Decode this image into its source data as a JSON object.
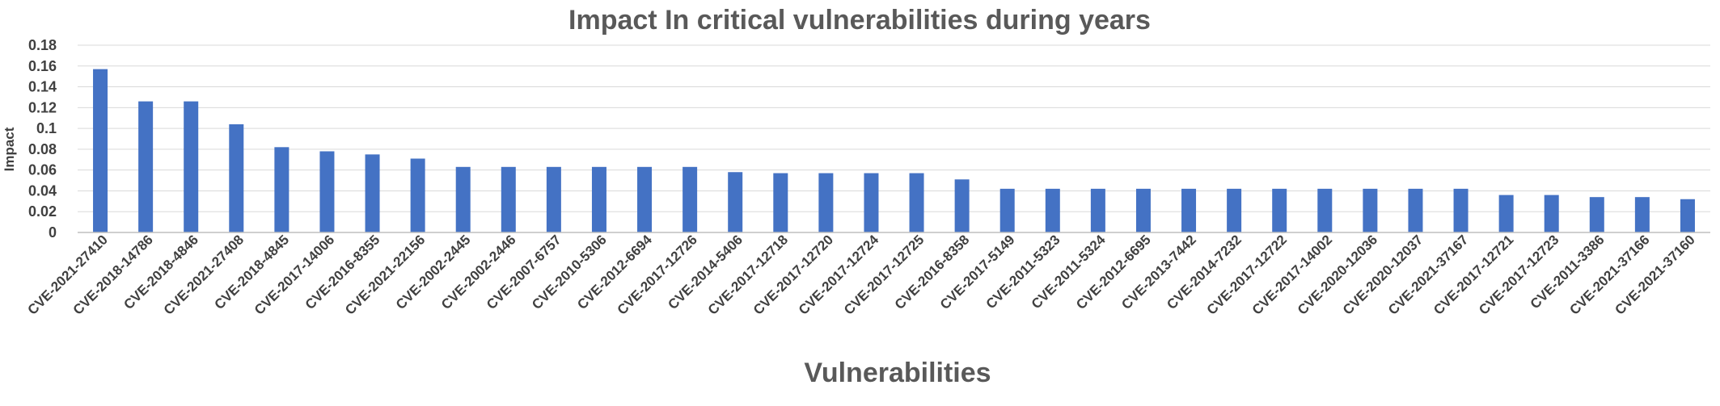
{
  "chart_data": {
    "type": "bar",
    "title": "Impact In critical vulnerabilities during years",
    "xlabel": "Vulnerabilities",
    "ylabel": "Impact",
    "ylim": [
      0,
      0.18
    ],
    "yticks": [
      "0",
      "0.02",
      "0.04",
      "0.06",
      "0.08",
      "0.1",
      "0.12",
      "0.14",
      "0.16",
      "0.18"
    ],
    "grid": true,
    "legend": "none",
    "bar_color": "#4472c4",
    "categories": [
      "CVE-2021-27410",
      "CVE-2018-14786",
      "CVE-2018-4846",
      "CVE-2021-27408",
      "CVE-2018-4845",
      "CVE-2017-14006",
      "CVE-2016-8355",
      "CVE-2021-22156",
      "CVE-2002-2445",
      "CVE-2002-2446",
      "CVE-2007-6757",
      "CVE-2010-5306",
      "CVE-2012-6694",
      "CVE-2017-12726",
      "CVE-2014-5406",
      "CVE-2017-12718",
      "CVE-2017-12720",
      "CVE-2017-12724",
      "CVE-2017-12725",
      "CVE-2016-8358",
      "CVE-2017-5149",
      "CVE-2011-5323",
      "CVE-2011-5324",
      "CVE-2012-6695",
      "CVE-2013-7442",
      "CVE-2014-7232",
      "CVE-2017-12722",
      "CVE-2017-14002",
      "CVE-2020-12036",
      "CVE-2020-12037",
      "CVE-2021-37167",
      "CVE-2017-12721",
      "CVE-2017-12723",
      "CVE-2011-3386",
      "CVE-2021-37166",
      "CVE-2021-37160"
    ],
    "values": [
      0.157,
      0.126,
      0.126,
      0.104,
      0.082,
      0.078,
      0.075,
      0.071,
      0.063,
      0.063,
      0.063,
      0.063,
      0.063,
      0.063,
      0.058,
      0.057,
      0.057,
      0.057,
      0.057,
      0.051,
      0.042,
      0.042,
      0.042,
      0.042,
      0.042,
      0.042,
      0.042,
      0.042,
      0.042,
      0.042,
      0.042,
      0.036,
      0.036,
      0.034,
      0.034,
      0.032
    ]
  }
}
